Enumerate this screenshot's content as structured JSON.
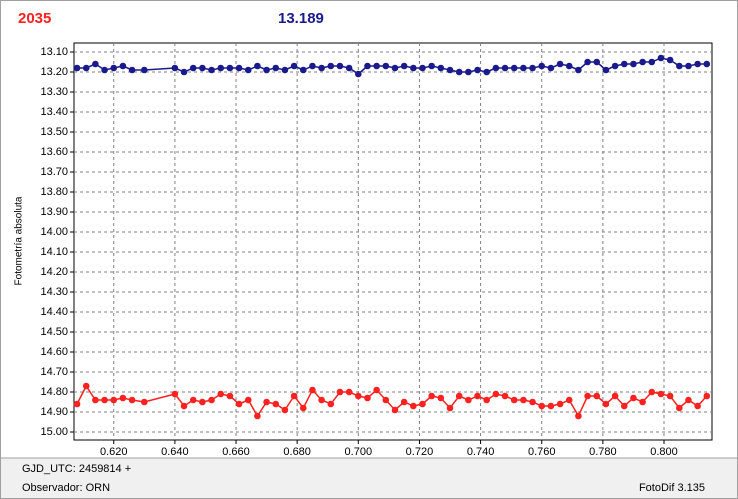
{
  "header": {
    "left_value": "2035",
    "center_value": "13.189"
  },
  "chart_data": {
    "type": "line",
    "ylabel": "Fotometría absoluta",
    "x": [
      0.608,
      0.611,
      0.614,
      0.617,
      0.62,
      0.623,
      0.626,
      0.63,
      0.64,
      0.643,
      0.646,
      0.649,
      0.652,
      0.655,
      0.658,
      0.661,
      0.664,
      0.667,
      0.67,
      0.673,
      0.676,
      0.679,
      0.682,
      0.685,
      0.688,
      0.691,
      0.694,
      0.697,
      0.7,
      0.703,
      0.706,
      0.709,
      0.712,
      0.715,
      0.718,
      0.721,
      0.724,
      0.727,
      0.73,
      0.733,
      0.736,
      0.739,
      0.742,
      0.745,
      0.748,
      0.751,
      0.754,
      0.757,
      0.76,
      0.763,
      0.766,
      0.769,
      0.772,
      0.775,
      0.778,
      0.781,
      0.784,
      0.787,
      0.79,
      0.793,
      0.796,
      0.799,
      0.802,
      0.805,
      0.808,
      0.811,
      0.814
    ],
    "series": [
      {
        "color": "#1a1a8c",
        "values": [
          13.18,
          13.18,
          13.16,
          13.19,
          13.18,
          13.17,
          13.19,
          13.19,
          13.18,
          13.2,
          13.18,
          13.18,
          13.19,
          13.18,
          13.18,
          13.18,
          13.19,
          13.17,
          13.19,
          13.18,
          13.19,
          13.17,
          13.19,
          13.17,
          13.18,
          13.17,
          13.17,
          13.18,
          13.21,
          13.17,
          13.17,
          13.17,
          13.18,
          13.17,
          13.18,
          13.18,
          13.17,
          13.18,
          13.19,
          13.2,
          13.2,
          13.19,
          13.2,
          13.18,
          13.18,
          13.18,
          13.18,
          13.18,
          13.17,
          13.18,
          13.16,
          13.17,
          13.19,
          13.15,
          13.15,
          13.19,
          13.17,
          13.16,
          13.16,
          13.15,
          13.15,
          13.13,
          13.14,
          13.17,
          13.17,
          13.16,
          13.16
        ]
      },
      {
        "color": "#ff2020",
        "values": [
          14.86,
          14.77,
          14.84,
          14.84,
          14.84,
          14.83,
          14.84,
          14.85,
          14.81,
          14.87,
          14.84,
          14.85,
          14.84,
          14.81,
          14.82,
          14.86,
          14.84,
          14.92,
          14.85,
          14.86,
          14.89,
          14.82,
          14.88,
          14.79,
          14.84,
          14.86,
          14.8,
          14.8,
          14.82,
          14.83,
          14.79,
          14.84,
          14.89,
          14.85,
          14.87,
          14.86,
          14.82,
          14.83,
          14.88,
          14.82,
          14.84,
          14.82,
          14.84,
          14.81,
          14.82,
          14.84,
          14.84,
          14.85,
          14.87,
          14.87,
          14.86,
          14.84,
          14.92,
          14.82,
          14.82,
          14.86,
          14.82,
          14.87,
          14.83,
          14.85,
          14.8,
          14.81,
          14.82,
          14.88,
          14.84,
          14.87,
          14.82
        ]
      }
    ],
    "xlim": [
      0.607,
      0.8157
    ],
    "ylim": [
      15.04,
      13.055
    ],
    "xticks": [
      {
        "value": 0.62,
        "label": "0.620"
      },
      {
        "value": 0.64,
        "label": "0.640"
      },
      {
        "value": 0.66,
        "label": "0.660"
      },
      {
        "value": 0.68,
        "label": "0.680"
      },
      {
        "value": 0.7,
        "label": "0.700"
      },
      {
        "value": 0.72,
        "label": "0.720"
      },
      {
        "value": 0.74,
        "label": "0.740"
      },
      {
        "value": 0.76,
        "label": "0.760"
      },
      {
        "value": 0.78,
        "label": "0.780"
      },
      {
        "value": 0.8,
        "label": "0.800"
      }
    ],
    "yticks": [
      {
        "value": 13.1,
        "label": "13.10"
      },
      {
        "value": 13.2,
        "label": "13.20"
      },
      {
        "value": 13.3,
        "label": "13.30"
      },
      {
        "value": 13.4,
        "label": "13.40"
      },
      {
        "value": 13.5,
        "label": "13.50"
      },
      {
        "value": 13.6,
        "label": "13.60"
      },
      {
        "value": 13.7,
        "label": "13.70"
      },
      {
        "value": 13.8,
        "label": "13.80"
      },
      {
        "value": 13.9,
        "label": "13.90"
      },
      {
        "value": 14.0,
        "label": "14.00"
      },
      {
        "value": 14.1,
        "label": "14.10"
      },
      {
        "value": 14.2,
        "label": "14.20"
      },
      {
        "value": 14.3,
        "label": "14.30"
      },
      {
        "value": 14.4,
        "label": "14.40"
      },
      {
        "value": 14.5,
        "label": "14.50"
      },
      {
        "value": 14.6,
        "label": "14.60"
      },
      {
        "value": 14.7,
        "label": "14.70"
      },
      {
        "value": 14.8,
        "label": "14.80"
      },
      {
        "value": 14.9,
        "label": "14.90"
      },
      {
        "value": 15.0,
        "label": "15.00"
      }
    ],
    "grid": true
  },
  "footer": {
    "date_base": "GJD_UTC: 2459814 +",
    "observer": "Observador: ORN",
    "software": "FotoDif 3.135"
  }
}
